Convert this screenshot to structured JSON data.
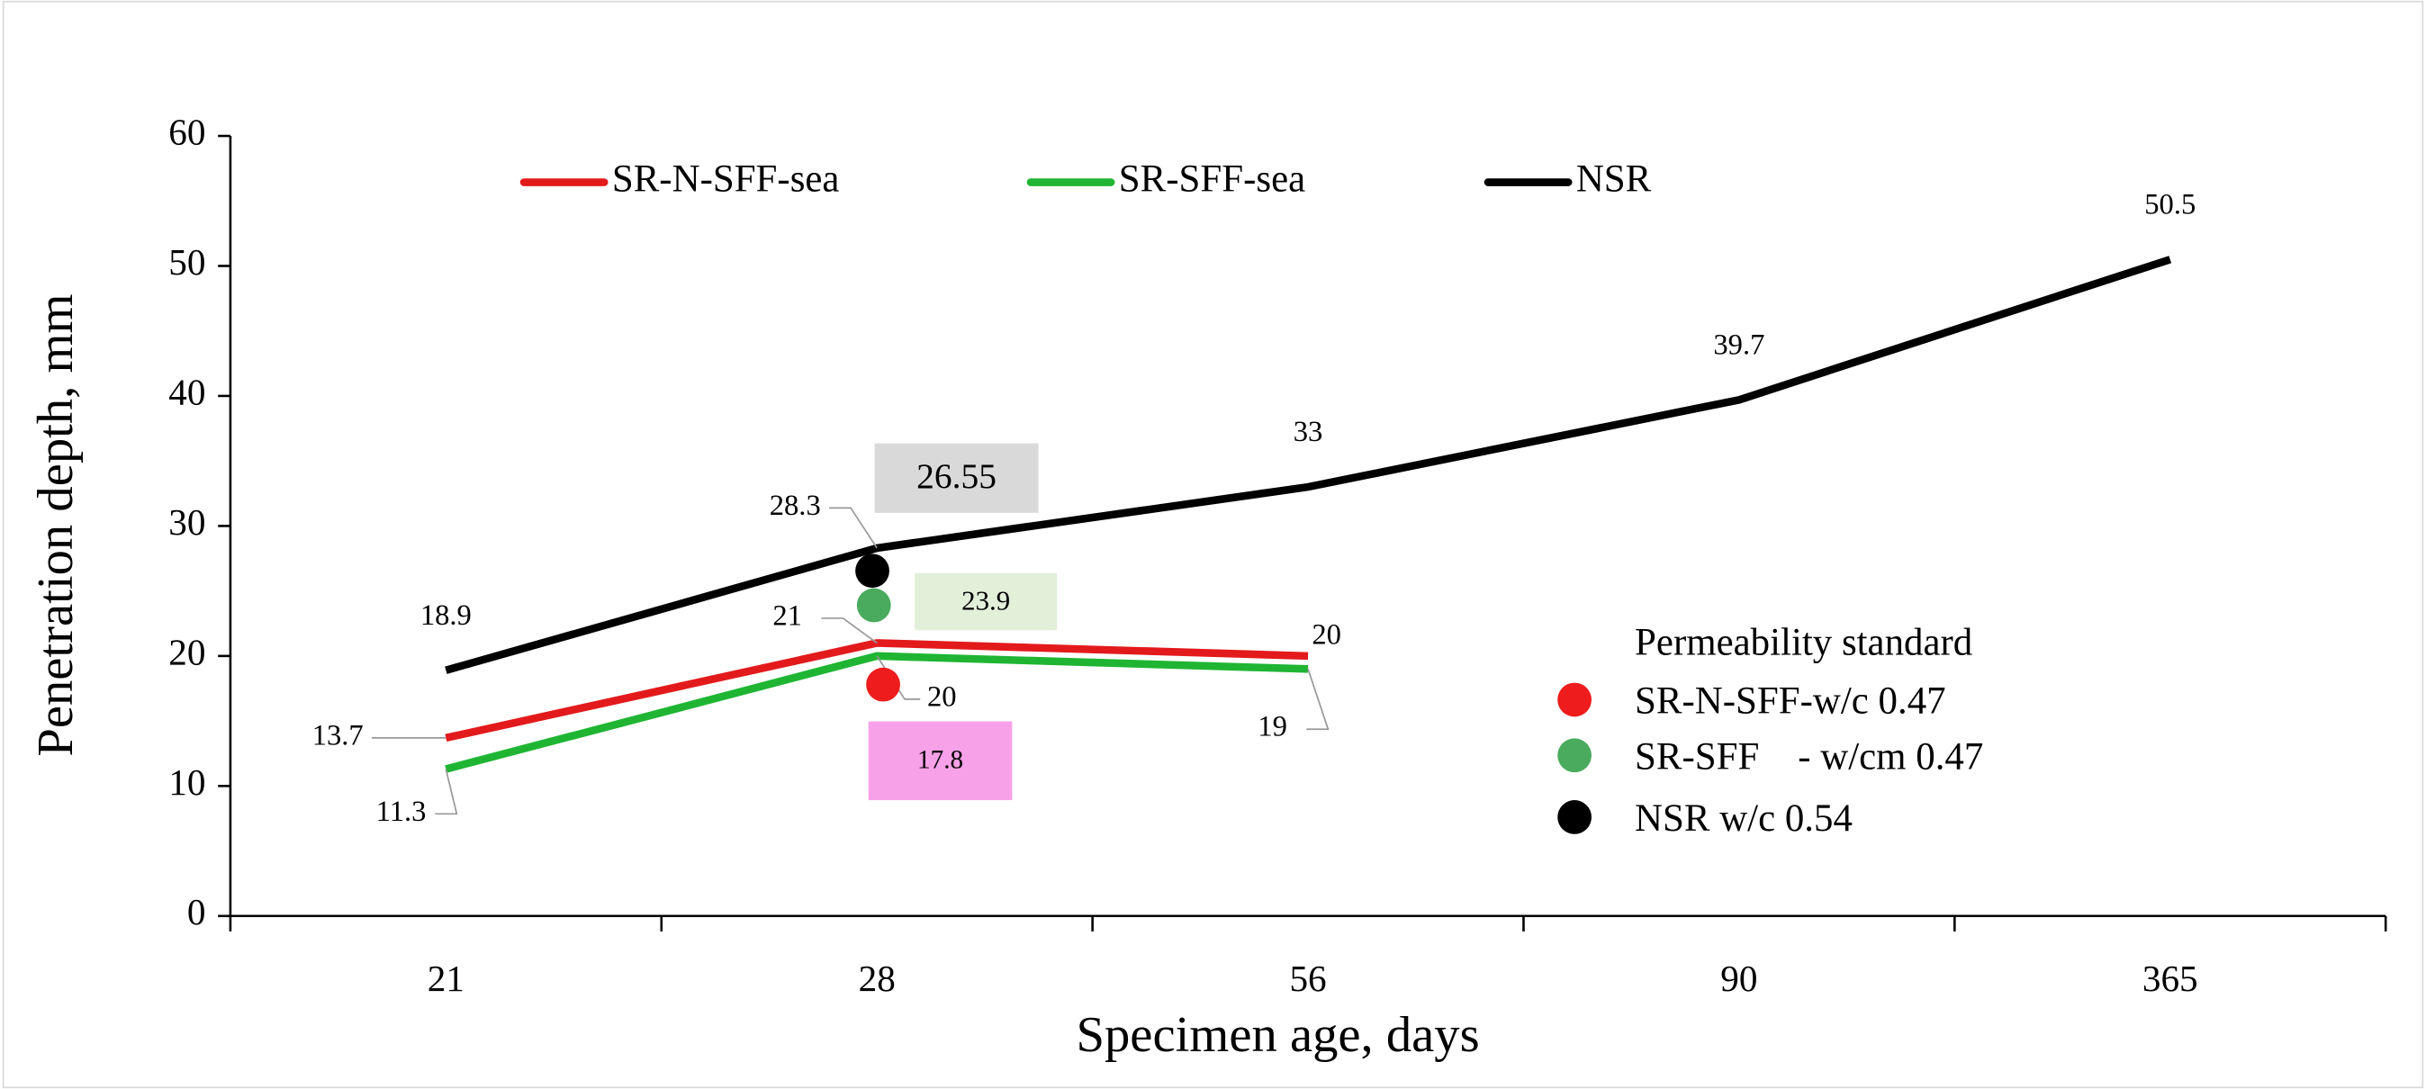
{
  "chart_data": {
    "type": "line",
    "categories": [
      "21",
      "28",
      "56",
      "90",
      "365"
    ],
    "xlabel": "Specimen age, days",
    "ylabel": "Penetration depth, mm",
    "ylim": [
      0,
      60
    ],
    "yticks": [
      0,
      10,
      20,
      30,
      40,
      50,
      60
    ],
    "series": [
      {
        "name": "SR-N-SFF-sea",
        "color": "#e31a1c",
        "values": [
          13.7,
          21,
          20,
          null,
          null
        ]
      },
      {
        "name": "SR-SFF-sea",
        "color": "#1fb533",
        "values": [
          11.3,
          20,
          19,
          null,
          null
        ]
      },
      {
        "name": "NSR",
        "color": "#000000",
        "values": [
          18.9,
          28.3,
          33,
          39.7,
          50.5
        ]
      }
    ],
    "standards_title": "Permeability standard",
    "standards": [
      {
        "name": "SR-N-SFF-w/c 0.47",
        "color": "#ee1c1c",
        "box_color": "#f7a1e8",
        "category": "28",
        "value": 17.8
      },
      {
        "name": "SR-SFF    - w/cm 0.47",
        "color": "#4aab5e",
        "box_color": "#e2efd9",
        "category": "28",
        "value": 23.9
      },
      {
        "name": "NSR w/c 0.54",
        "color": "#000000",
        "box_color": "#d9d9d9",
        "category": "28",
        "value": 26.55
      }
    ]
  }
}
